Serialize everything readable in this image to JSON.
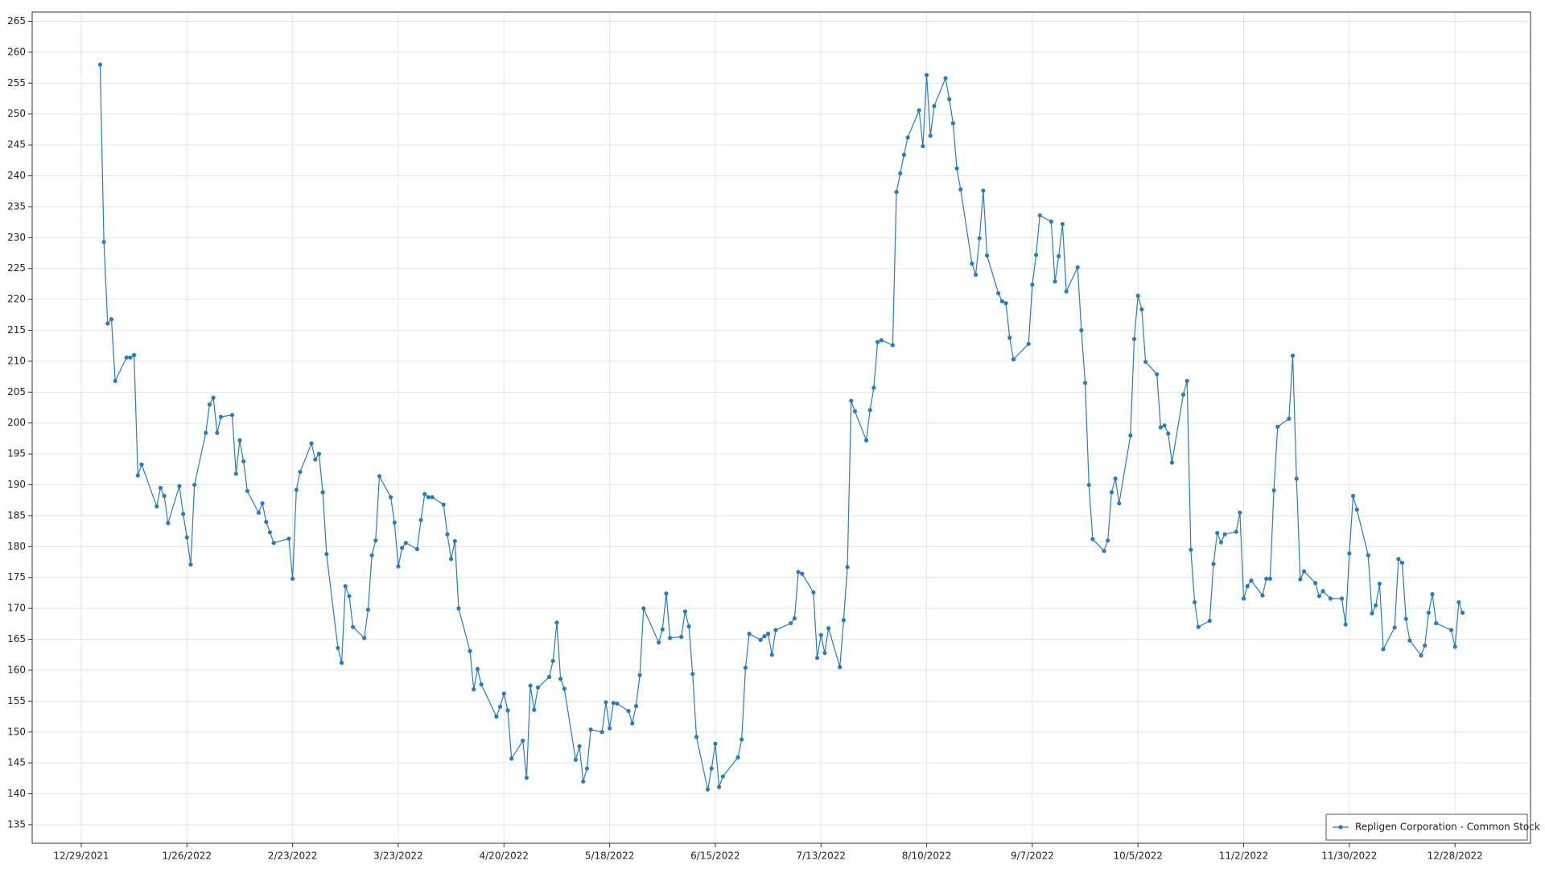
{
  "chart_data": {
    "type": "line",
    "legend": "bottom-right",
    "grid": true,
    "xlim": [
      "12/16/2021",
      "1/17/2023"
    ],
    "xticks": [
      "12/29/2021",
      "1/26/2022",
      "2/23/2022",
      "3/23/2022",
      "4/20/2022",
      "5/18/2022",
      "6/15/2022",
      "7/13/2022",
      "8/10/2022",
      "9/7/2022",
      "10/5/2022",
      "11/2/2022",
      "11/30/2022",
      "12/28/2022"
    ],
    "ylim": [
      132,
      266.5
    ],
    "yticks": [
      135,
      140,
      145,
      150,
      155,
      160,
      165,
      170,
      175,
      180,
      185,
      190,
      195,
      200,
      205,
      210,
      215,
      220,
      225,
      230,
      235,
      240,
      245,
      250,
      255,
      260,
      265
    ],
    "x": [
      "1/3/2022",
      "1/4/2022",
      "1/5/2022",
      "1/6/2022",
      "1/7/2022",
      "1/10/2022",
      "1/11/2022",
      "1/12/2022",
      "1/13/2022",
      "1/14/2022",
      "1/18/2022",
      "1/19/2022",
      "1/20/2022",
      "1/21/2022",
      "1/24/2022",
      "1/25/2022",
      "1/26/2022",
      "1/27/2022",
      "1/28/2022",
      "1/31/2022",
      "2/1/2022",
      "2/2/2022",
      "2/3/2022",
      "2/4/2022",
      "2/7/2022",
      "2/8/2022",
      "2/9/2022",
      "2/10/2022",
      "2/11/2022",
      "2/14/2022",
      "2/15/2022",
      "2/16/2022",
      "2/17/2022",
      "2/18/2022",
      "2/22/2022",
      "2/23/2022",
      "2/24/2022",
      "2/25/2022",
      "2/28/2022",
      "3/1/2022",
      "3/2/2022",
      "3/3/2022",
      "3/4/2022",
      "3/7/2022",
      "3/8/2022",
      "3/9/2022",
      "3/10/2022",
      "3/11/2022",
      "3/14/2022",
      "3/15/2022",
      "3/16/2022",
      "3/17/2022",
      "3/18/2022",
      "3/21/2022",
      "3/22/2022",
      "3/23/2022",
      "3/24/2022",
      "3/25/2022",
      "3/28/2022",
      "3/29/2022",
      "3/30/2022",
      "3/31/2022",
      "4/1/2022",
      "4/4/2022",
      "4/5/2022",
      "4/6/2022",
      "4/7/2022",
      "4/8/2022",
      "4/11/2022",
      "4/12/2022",
      "4/13/2022",
      "4/14/2022",
      "4/18/2022",
      "4/19/2022",
      "4/20/2022",
      "4/21/2022",
      "4/22/2022",
      "4/25/2022",
      "4/26/2022",
      "4/27/2022",
      "4/28/2022",
      "4/29/2022",
      "5/2/2022",
      "5/3/2022",
      "5/4/2022",
      "5/5/2022",
      "5/6/2022",
      "5/9/2022",
      "5/10/2022",
      "5/11/2022",
      "5/12/2022",
      "5/13/2022",
      "5/16/2022",
      "5/17/2022",
      "5/18/2022",
      "5/19/2022",
      "5/20/2022",
      "5/23/2022",
      "5/24/2022",
      "5/25/2022",
      "5/26/2022",
      "5/27/2022",
      "5/31/2022",
      "6/1/2022",
      "6/2/2022",
      "6/3/2022",
      "6/6/2022",
      "6/7/2022",
      "6/8/2022",
      "6/9/2022",
      "6/10/2022",
      "6/13/2022",
      "6/14/2022",
      "6/15/2022",
      "6/16/2022",
      "6/17/2022",
      "6/21/2022",
      "6/22/2022",
      "6/23/2022",
      "6/24/2022",
      "6/27/2022",
      "6/28/2022",
      "6/29/2022",
      "6/30/2022",
      "7/1/2022",
      "7/5/2022",
      "7/6/2022",
      "7/7/2022",
      "7/8/2022",
      "7/11/2022",
      "7/12/2022",
      "7/13/2022",
      "7/14/2022",
      "7/15/2022",
      "7/18/2022",
      "7/19/2022",
      "7/20/2022",
      "7/21/2022",
      "7/22/2022",
      "7/25/2022",
      "7/26/2022",
      "7/27/2022",
      "7/28/2022",
      "7/29/2022",
      "8/1/2022",
      "8/2/2022",
      "8/3/2022",
      "8/4/2022",
      "8/5/2022",
      "8/8/2022",
      "8/9/2022",
      "8/10/2022",
      "8/11/2022",
      "8/12/2022",
      "8/15/2022",
      "8/16/2022",
      "8/17/2022",
      "8/18/2022",
      "8/19/2022",
      "8/22/2022",
      "8/23/2022",
      "8/24/2022",
      "8/25/2022",
      "8/26/2022",
      "8/29/2022",
      "8/30/2022",
      "8/31/2022",
      "9/1/2022",
      "9/2/2022",
      "9/6/2022",
      "9/7/2022",
      "9/8/2022",
      "9/9/2022",
      "9/12/2022",
      "9/13/2022",
      "9/14/2022",
      "9/15/2022",
      "9/16/2022",
      "9/19/2022",
      "9/20/2022",
      "9/21/2022",
      "9/22/2022",
      "9/23/2022",
      "9/26/2022",
      "9/27/2022",
      "9/28/2022",
      "9/29/2022",
      "9/30/2022",
      "10/3/2022",
      "10/4/2022",
      "10/5/2022",
      "10/6/2022",
      "10/7/2022",
      "10/10/2022",
      "10/11/2022",
      "10/12/2022",
      "10/13/2022",
      "10/14/2022",
      "10/17/2022",
      "10/18/2022",
      "10/19/2022",
      "10/20/2022",
      "10/21/2022",
      "10/24/2022",
      "10/25/2022",
      "10/26/2022",
      "10/27/2022",
      "10/28/2022",
      "10/31/2022",
      "11/1/2022",
      "11/2/2022",
      "11/3/2022",
      "11/4/2022",
      "11/7/2022",
      "11/8/2022",
      "11/9/2022",
      "11/10/2022",
      "11/11/2022",
      "11/14/2022",
      "11/15/2022",
      "11/16/2022",
      "11/17/2022",
      "11/18/2022",
      "11/21/2022",
      "11/22/2022",
      "11/23/2022",
      "11/25/2022",
      "11/28/2022",
      "11/29/2022",
      "11/30/2022",
      "12/1/2022",
      "12/2/2022",
      "12/5/2022",
      "12/6/2022",
      "12/7/2022",
      "12/8/2022",
      "12/9/2022",
      "12/12/2022",
      "12/13/2022",
      "12/14/2022",
      "12/15/2022",
      "12/16/2022",
      "12/19/2022",
      "12/20/2022",
      "12/21/2022",
      "12/22/2022",
      "12/23/2022",
      "12/27/2022",
      "12/28/2022",
      "12/29/2022",
      "12/30/2022"
    ],
    "series": [
      {
        "name": "Repligen Corporation - Common Stock",
        "color": "#2b7bba",
        "values": [
          258,
          229.3,
          216.1,
          216.8,
          206.8,
          210.6,
          210.6,
          211,
          191.5,
          193.3,
          186.5,
          189.5,
          188.2,
          183.8,
          189.8,
          185.3,
          181.5,
          177.1,
          190,
          198.4,
          203,
          204.1,
          198.4,
          201,
          201.3,
          191.8,
          197.2,
          193.8,
          189,
          185.5,
          187,
          184,
          182.3,
          180.6,
          181.3,
          174.8,
          189.2,
          192.1,
          196.7,
          194.1,
          195,
          188.8,
          178.8,
          163.6,
          161.2,
          173.6,
          172,
          167,
          165.2,
          169.8,
          178.6,
          181,
          191.4,
          188,
          183.9,
          176.8,
          179.8,
          180.6,
          179.6,
          184.3,
          188.5,
          188,
          188,
          186.8,
          182,
          178,
          180.9,
          170,
          163.1,
          156.9,
          160.2,
          157.7,
          152.5,
          154.1,
          156.2,
          153.5,
          145.7,
          148.6,
          142.6,
          157.5,
          153.6,
          157.2,
          158.9,
          161.5,
          167.7,
          158.6,
          157,
          145.5,
          147.7,
          142,
          144.1,
          150.4,
          150,
          154.8,
          150.6,
          154.7,
          154.6,
          153.4,
          151.4,
          154.2,
          159.2,
          170,
          164.5,
          166.6,
          172.4,
          165.2,
          165.4,
          169.5,
          167.1,
          159.4,
          149.2,
          140.7,
          144.1,
          148.1,
          141.1,
          142.8,
          145.9,
          148.8,
          160.4,
          165.9,
          164.9,
          165.5,
          165.9,
          162.5,
          166.5,
          167.6,
          168.4,
          175.9,
          175.6,
          172.6,
          162,
          165.7,
          162.8,
          166.8,
          160.5,
          168.1,
          176.7,
          203.6,
          201.9,
          197.2,
          202.1,
          205.7,
          213.1,
          213.4,
          212.6,
          237.4,
          240.4,
          243.4,
          246.2,
          250.6,
          244.8,
          256.3,
          246.5,
          251.3,
          255.8,
          252.4,
          248.5,
          241.2,
          237.8,
          225.8,
          224,
          229.9,
          237.6,
          227.1,
          221,
          219.7,
          219.4,
          213.8,
          210.3,
          212.8,
          222.4,
          227.2,
          233.6,
          232.6,
          222.9,
          227,
          232.2,
          221.3,
          225.2,
          215,
          206.5,
          190,
          181.2,
          179.3,
          181,
          188.8,
          191,
          187,
          198,
          213.6,
          220.6,
          218.4,
          209.9,
          207.9,
          199.3,
          199.6,
          198.3,
          193.6,
          204.6,
          206.8,
          179.5,
          171,
          167,
          168,
          177.2,
          182.2,
          180.7,
          182,
          182.4,
          185.5,
          171.6,
          173.6,
          174.5,
          172.1,
          174.8,
          174.8,
          189.1,
          199.4,
          200.7,
          210.9,
          191,
          174.7,
          176,
          174.1,
          172,
          172.8,
          171.6,
          171.6,
          167.4,
          178.9,
          188.2,
          186,
          178.6,
          169.2,
          170.5,
          174,
          163.4,
          166.9,
          178,
          177.4,
          168.3,
          164.8,
          162.4,
          164,
          169.3,
          172.3,
          167.6,
          166.5,
          163.8,
          171,
          169.3
        ]
      }
    ]
  }
}
